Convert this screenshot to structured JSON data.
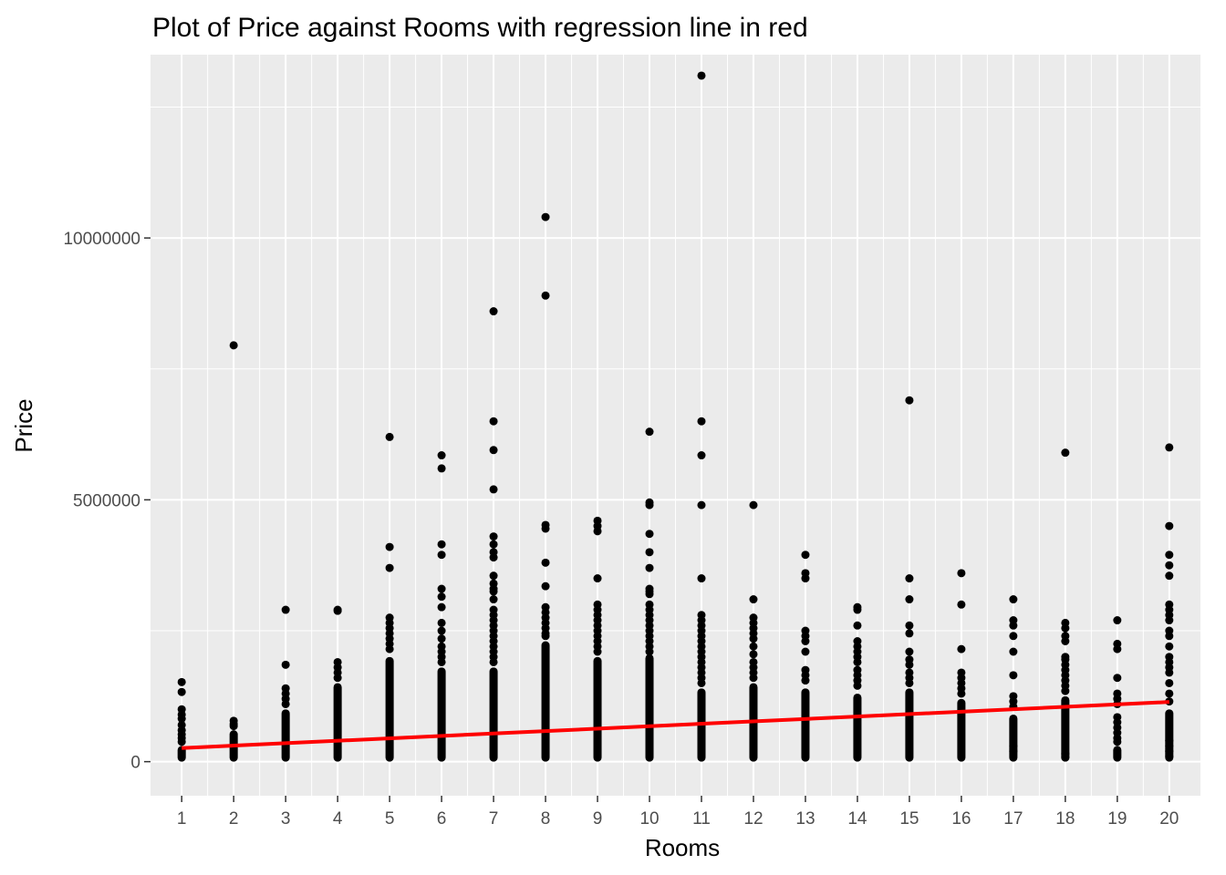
{
  "chart_data": {
    "type": "scatter",
    "title": "Plot of Price against Rooms with regression line in red",
    "xlabel": "Rooms",
    "ylabel": "Price",
    "x_ticks": [
      1,
      2,
      3,
      4,
      5,
      6,
      7,
      8,
      9,
      10,
      11,
      12,
      13,
      14,
      15,
      16,
      17,
      18,
      19,
      20
    ],
    "x_tick_labels": [
      "1",
      "2",
      "3",
      "4",
      "5",
      "6",
      "7",
      "8",
      "9",
      "10",
      "11",
      "12",
      "13",
      "14",
      "15",
      "16",
      "17",
      "18",
      "19",
      "20"
    ],
    "y_ticks": [
      0,
      5000000,
      10000000
    ],
    "y_tick_labels": [
      "0",
      "5000000",
      "10000000"
    ],
    "xlim": [
      0.4,
      20.6
    ],
    "ylim": [
      -650000,
      13500000
    ],
    "grid": true,
    "panel_background": "#ebebeb",
    "grid_color": "#ffffff",
    "point_color": "#000000",
    "line_color": "#ff0000",
    "regression": {
      "x": [
        1,
        20
      ],
      "y": [
        260000,
        1140000
      ]
    },
    "columns": [
      {
        "x": 1,
        "dense_max": 300000,
        "points": [
          1520000,
          1330000,
          1000000,
          900000,
          820000,
          700000,
          600000,
          520000,
          450000,
          380000
        ]
      },
      {
        "x": 2,
        "dense_max": 600000,
        "points": [
          7950000,
          780000,
          720000,
          680000
        ]
      },
      {
        "x": 3,
        "dense_max": 1000000,
        "points": [
          2900000,
          1850000,
          1400000,
          1300000,
          1200000,
          1100000
        ]
      },
      {
        "x": 4,
        "dense_max": 1500000,
        "points": [
          2900000,
          2880000,
          1900000,
          1800000,
          1700000,
          1600000
        ]
      },
      {
        "x": 5,
        "dense_max": 2000000,
        "points": [
          6200000,
          4100000,
          3700000,
          2750000,
          2650000,
          2550000,
          2450000,
          2350000,
          2250000,
          2150000
        ]
      },
      {
        "x": 6,
        "dense_max": 1800000,
        "points": [
          5850000,
          5600000,
          4150000,
          3950000,
          3300000,
          3150000,
          2950000,
          2650000,
          2500000,
          2350000,
          2200000,
          2100000,
          2000000,
          1900000
        ]
      },
      {
        "x": 7,
        "dense_max": 1800000,
        "points": [
          8600000,
          6500000,
          5950000,
          5200000,
          4300000,
          4150000,
          4000000,
          3900000,
          3550000,
          3400000,
          3300000,
          3250000,
          3100000,
          2900000,
          2800000,
          2700000,
          2600000,
          2500000,
          2400000,
          2300000,
          2200000,
          2100000,
          2000000,
          1900000
        ]
      },
      {
        "x": 8,
        "dense_max": 2300000,
        "points": [
          10400000,
          8900000,
          4520000,
          4450000,
          3800000,
          3350000,
          2950000,
          2850000,
          2750000,
          2650000,
          2550000,
          2450000,
          2400000
        ]
      },
      {
        "x": 9,
        "dense_max": 2000000,
        "points": [
          4600000,
          4500000,
          4400000,
          3500000,
          3000000,
          2900000,
          2800000,
          2700000,
          2600000,
          2500000,
          2400000,
          2300000,
          2200000,
          2100000
        ]
      },
      {
        "x": 10,
        "dense_max": 2050000,
        "points": [
          6300000,
          4950000,
          4900000,
          4350000,
          4000000,
          3700000,
          3300000,
          3250000,
          3200000,
          3000000,
          2900000,
          2800000,
          2700000,
          2600000,
          2500000,
          2400000,
          2300000,
          2200000,
          2100000
        ]
      },
      {
        "x": 11,
        "dense_max": 1400000,
        "points": [
          13100000,
          6500000,
          5850000,
          4900000,
          3500000,
          2800000,
          2700000,
          2600000,
          2500000,
          2400000,
          2300000,
          2200000,
          2100000,
          2000000,
          1900000,
          1800000,
          1700000,
          1600000,
          1500000
        ]
      },
      {
        "x": 12,
        "dense_max": 1500000,
        "points": [
          4900000,
          3100000,
          2750000,
          2650000,
          2550000,
          2450000,
          2350000,
          2200000,
          2050000,
          1900000,
          1800000,
          1700000,
          1600000
        ]
      },
      {
        "x": 13,
        "dense_max": 1400000,
        "points": [
          3950000,
          3600000,
          3500000,
          2500000,
          2400000,
          2300000,
          2100000,
          1750000,
          1650000,
          1550000
        ]
      },
      {
        "x": 14,
        "dense_max": 1300000,
        "points": [
          2950000,
          2900000,
          2600000,
          2300000,
          2200000,
          2100000,
          2000000,
          1900000,
          1750000,
          1650000,
          1550000,
          1450000
        ]
      },
      {
        "x": 15,
        "dense_max": 1400000,
        "points": [
          6900000,
          3500000,
          3100000,
          2600000,
          2450000,
          2100000,
          1950000,
          1850000,
          1700000,
          1600000,
          1500000
        ]
      },
      {
        "x": 16,
        "dense_max": 1200000,
        "points": [
          3600000,
          3000000,
          2150000,
          1700000,
          1600000,
          1500000,
          1400000,
          1300000
        ]
      },
      {
        "x": 17,
        "dense_max": 900000,
        "points": [
          3100000,
          2700000,
          2600000,
          2400000,
          2100000,
          1650000,
          1250000,
          1150000,
          1050000,
          300000,
          200000
        ]
      },
      {
        "x": 18,
        "dense_max": 1250000,
        "points": [
          5900000,
          2650000,
          2550000,
          2400000,
          2300000,
          2000000,
          1950000,
          1850000,
          1750000,
          1650000,
          1550000,
          1450000,
          1350000,
          150000,
          80000
        ]
      },
      {
        "x": 19,
        "dense_max": 300000,
        "points": [
          2700000,
          2250000,
          2150000,
          1600000,
          1300000,
          1200000,
          1100000,
          850000,
          750000,
          650000,
          550000,
          450000,
          380000
        ]
      },
      {
        "x": 20,
        "dense_max": 1000000,
        "points": [
          6000000,
          4500000,
          3950000,
          3750000,
          3550000,
          3000000,
          2900000,
          2800000,
          2700000,
          2500000,
          2400000,
          2200000,
          2000000,
          1900000,
          1800000,
          1700000,
          1500000,
          1300000,
          1150000,
          400000,
          300000,
          200000,
          100000
        ]
      }
    ]
  }
}
